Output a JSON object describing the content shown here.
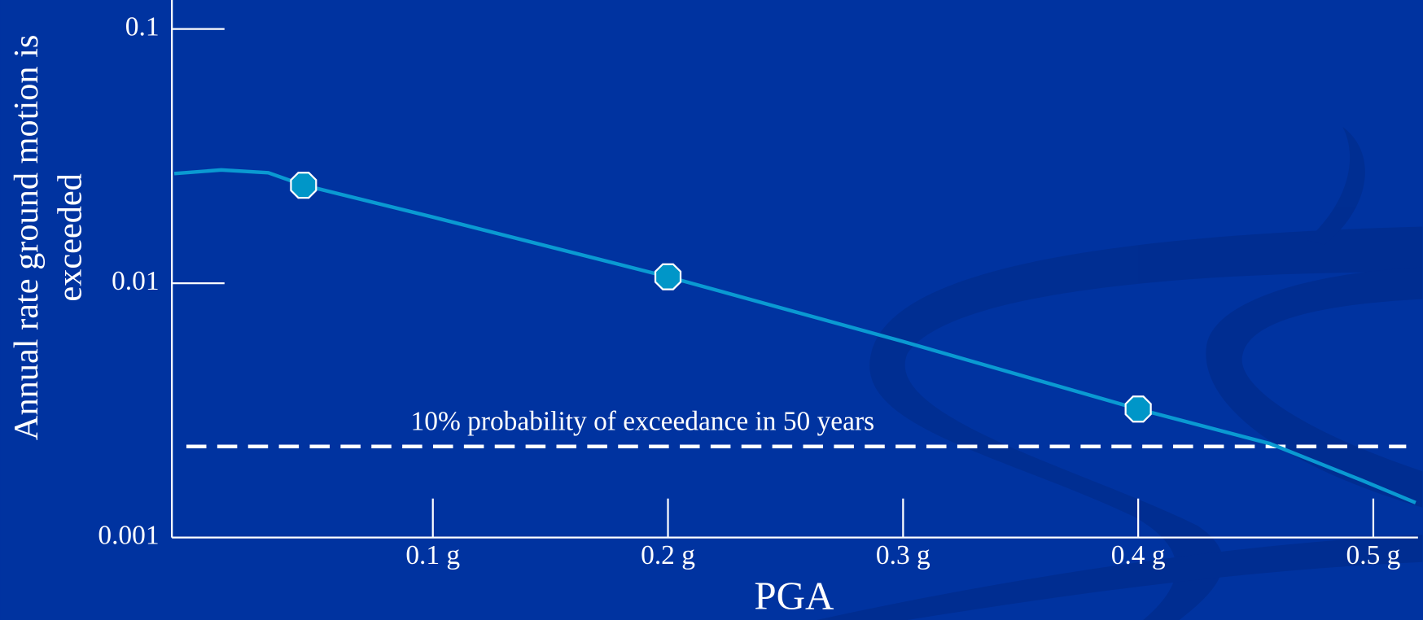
{
  "chart_data": {
    "type": "line",
    "x_label": "PGA",
    "y_label": [
      "Annual rate ground motion is",
      "exceeded"
    ],
    "xlim": [
      -0.011,
      0.519
    ],
    "ylim": [
      0.001,
      0.13
    ],
    "log_y": true,
    "xticks": [
      {
        "value": 0.1,
        "label": "0.1 g"
      },
      {
        "value": 0.2,
        "label": "0.2 g"
      },
      {
        "value": 0.3,
        "label": "0.3 g"
      },
      {
        "value": 0.4,
        "label": "0.4 g"
      },
      {
        "value": 0.5,
        "label": "0.5 g"
      }
    ],
    "yticks": [
      0.001,
      0.01,
      0.1
    ],
    "line": {
      "color": "#0a9ad2",
      "x": [
        -0.01,
        0.01,
        0.03,
        0.045,
        0.1,
        0.2,
        0.3,
        0.4,
        0.456,
        0.495,
        0.518
      ],
      "values": [
        0.027,
        0.0279,
        0.0272,
        0.0243,
        0.0182,
        0.0106,
        0.0059,
        0.0032,
        0.00234,
        0.00168,
        0.00137
      ]
    },
    "points": {
      "color": "#0096c8",
      "x": [
        0.045,
        0.2,
        0.4
      ],
      "values": [
        0.0243,
        0.0106,
        0.0032
      ]
    },
    "threshold": {
      "label": "10% probability of exceedance in 50 years",
      "value": 0.00228,
      "color": "#ffffff"
    }
  }
}
